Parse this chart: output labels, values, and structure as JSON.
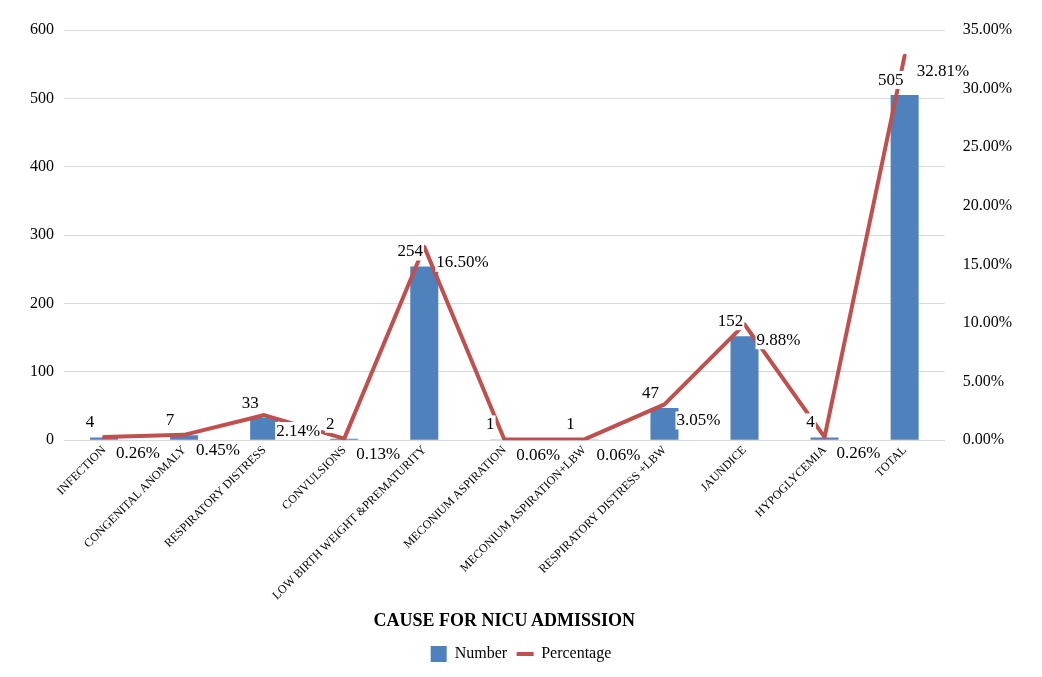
{
  "chart_data": {
    "type": "bar",
    "xlabel": "CAUSE FOR NICU ADMISSION",
    "categories": [
      "INFECTION",
      "CONGENITAL ANOMALY",
      "RESPIRATORY DISTRESS",
      "CONVULSIONS",
      "LOW BIRTH WEIGHT &PREMATURITY",
      "MECONIUM ASPIRATION",
      "MECONIUM ASPIRATION+LBW",
      "RESPIRATORY DISTRESS +LBW",
      "JAUNDICE",
      "HYPOGLYCEMIA",
      "TOTAL"
    ],
    "series": [
      {
        "name": "Number",
        "color": "#4f81bd",
        "values": [
          4,
          7,
          33,
          2,
          254,
          1,
          1,
          47,
          152,
          4,
          505
        ],
        "value_labels": [
          "4",
          "7",
          "33",
          "2",
          "254",
          "1",
          "1",
          "47",
          "152",
          "4",
          "505"
        ]
      },
      {
        "name": "Percentage",
        "type": "line",
        "axis": "y2",
        "color": "#c0504d",
        "values": [
          0.26,
          0.45,
          2.14,
          0.13,
          16.5,
          0.06,
          0.06,
          3.05,
          9.88,
          0.26,
          32.81
        ],
        "value_labels": [
          "0.26%",
          "0.45%",
          "2.14%",
          "0.13%",
          "16.50%",
          "0.06%",
          "0.06%",
          "3.05%",
          "9.88%",
          "0.26%",
          "32.81%"
        ]
      }
    ],
    "ylim": [
      0,
      600
    ],
    "yticks": [
      0,
      100,
      200,
      300,
      400,
      500,
      600
    ],
    "y2lim": [
      0,
      35
    ],
    "y2ticks": [
      {
        "value": 0,
        "label": "0.00%"
      },
      {
        "value": 5,
        "label": "5.00%"
      },
      {
        "value": 10,
        "label": "10.00%"
      },
      {
        "value": 15,
        "label": "15.00%"
      },
      {
        "value": 20,
        "label": "20.00%"
      },
      {
        "value": 25,
        "label": "25.00%"
      },
      {
        "value": 30,
        "label": "30.00%"
      },
      {
        "value": 35,
        "label": "35.00%"
      }
    ],
    "grid": "y",
    "legend": "bottom",
    "marker": "none",
    "line_style": "solid"
  }
}
